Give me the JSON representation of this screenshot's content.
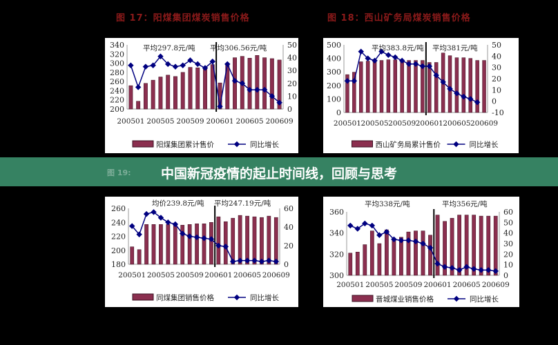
{
  "banner": {
    "title": "中国新冠疫情的起止时间线，回顾与思考",
    "ghost_fig": "图 19:",
    "color": "#3a8c69"
  },
  "colors": {
    "bar": "#8b2f4f",
    "line": "#000080",
    "title": "#8b1a1a"
  },
  "chart_data": [
    {
      "type": "bar+line",
      "fig_title": "图 17：阳煤集团煤炭销售价格",
      "categories": [
        "200501",
        "200502",
        "200503",
        "200504",
        "200505",
        "200506",
        "200507",
        "200508",
        "200509",
        "200510",
        "200511",
        "200512",
        "200601",
        "200602",
        "200603",
        "200604",
        "200605",
        "200606",
        "200607",
        "200608",
        "200609"
      ],
      "xtick_labels": [
        "200501",
        "200505",
        "200509",
        "200601",
        "200605",
        "200609"
      ],
      "left_axis": {
        "min": 200,
        "max": 340,
        "step": 20
      },
      "right_axis": {
        "min": 0,
        "max": 50,
        "step": 10
      },
      "bar_series": {
        "name": "阳煤集团累计售价",
        "values": [
          251,
          217,
          256,
          263,
          270,
          274,
          271,
          280,
          291,
          290,
          288,
          297,
          257,
          297,
          312,
          315,
          311,
          317,
          312,
          310,
          307
        ]
      },
      "line_series": {
        "name": "同比增长",
        "values": [
          34,
          17,
          33,
          34,
          41,
          35,
          33,
          34,
          38,
          35,
          32,
          37,
          2,
          35,
          22,
          20,
          15,
          15,
          15,
          10,
          5
        ]
      },
      "annotations": [
        "平均297.8元/吨",
        "平均306.56元/吨"
      ]
    },
    {
      "type": "bar+line",
      "fig_title": "图 18：西山矿务局煤炭销售价格",
      "categories": [
        "200501",
        "200502",
        "200503",
        "200504",
        "200505",
        "200506",
        "200507",
        "200508",
        "200509",
        "200510",
        "200511",
        "200512",
        "200601",
        "200602",
        "200603",
        "200604",
        "200605",
        "200606",
        "200607",
        "200608",
        "200609"
      ],
      "xtick_labels": [
        "200501",
        "200505",
        "200509",
        "200601",
        "200605",
        "200609"
      ],
      "left_axis": {
        "min": 0,
        "max": 500,
        "step": 100
      },
      "right_axis": {
        "min": -10,
        "max": 50,
        "step": 10
      },
      "bar_series": {
        "name": "西山矿务局累计售价",
        "values": [
          280,
          298,
          375,
          380,
          385,
          385,
          390,
          390,
          385,
          385,
          385,
          385,
          370,
          370,
          440,
          420,
          405,
          405,
          400,
          385,
          385
        ]
      },
      "line_series": {
        "name": "同比增长",
        "values": [
          18,
          18,
          44,
          38,
          36,
          44,
          41,
          39,
          36,
          33,
          33,
          31,
          31,
          23,
          17,
          11,
          7,
          4,
          2,
          -1,
          null
        ]
      },
      "annotations": [
        "平均383.8元/吨",
        "平均381元/吨"
      ]
    },
    {
      "type": "bar+line",
      "fig_title": "",
      "categories": [
        "200501",
        "200502",
        "200503",
        "200504",
        "200505",
        "200506",
        "200507",
        "200508",
        "200509",
        "200510",
        "200511",
        "200512",
        "200601",
        "200602",
        "200603",
        "200604",
        "200605",
        "200606",
        "200607",
        "200608",
        "200609"
      ],
      "xtick_labels": [
        "200501",
        "200505",
        "200509",
        "200601",
        "200605",
        "200609"
      ],
      "left_axis": {
        "min": 180,
        "max": 260,
        "step": 20
      },
      "right_axis": {
        "min": 0,
        "max": 60,
        "step": 20
      },
      "bar_series": {
        "name": "同煤集团销售价格",
        "values": [
          205,
          201,
          237,
          237,
          237,
          237,
          237,
          236,
          237,
          238,
          238,
          240,
          248,
          241,
          246,
          250,
          249,
          248,
          247,
          249,
          247
        ]
      },
      "line_series": {
        "name": "同比增长",
        "values": [
          41,
          32,
          54,
          56,
          50,
          45,
          43,
          33,
          30,
          29,
          28,
          27,
          20,
          19,
          3,
          4,
          4,
          4,
          3,
          4,
          3
        ]
      },
      "annotations": [
        "均价239.8元/吨",
        "平均247.19元/吨"
      ]
    },
    {
      "type": "bar+line",
      "fig_title": "",
      "categories": [
        "200501",
        "200502",
        "200503",
        "200504",
        "200505",
        "200506",
        "200507",
        "200508",
        "200509",
        "200510",
        "200511",
        "200512",
        "200601",
        "200602",
        "200603",
        "200604",
        "200605",
        "200606",
        "200607",
        "200608",
        "200609"
      ],
      "xtick_labels": [
        "200501",
        "200505",
        "200509",
        "200601",
        "200605",
        "200609"
      ],
      "left_axis": {
        "min": 300,
        "max": 360,
        "step": 20
      },
      "right_axis": {
        "min": 0,
        "max": 60,
        "step": 10
      },
      "bar_series": {
        "name": "晋城煤业销售价格",
        "values": [
          321,
          322,
          329,
          342,
          330,
          343,
          335,
          336,
          341,
          342,
          342,
          338,
          357,
          351,
          354,
          357,
          357,
          357,
          356,
          356,
          356
        ]
      },
      "line_series": {
        "name": "同比增长",
        "values": [
          47,
          44,
          49,
          47,
          38,
          41,
          34,
          33,
          33,
          32,
          30,
          26,
          11,
          8,
          7,
          5,
          8,
          6,
          5,
          5,
          4
        ]
      },
      "annotations": [
        "平均338元/吨",
        "平均356元/吨"
      ]
    }
  ]
}
